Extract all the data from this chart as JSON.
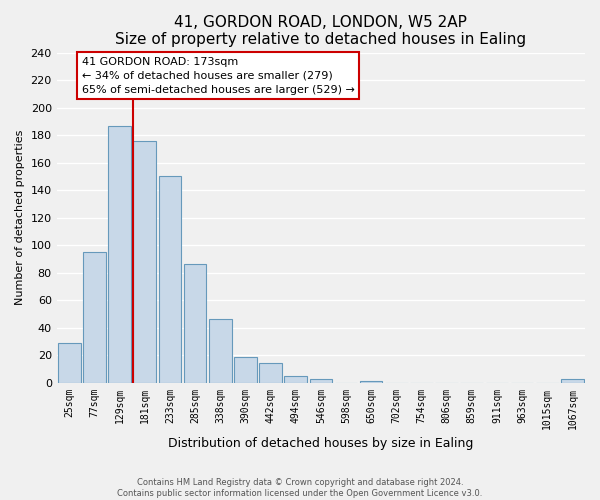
{
  "title": "41, GORDON ROAD, LONDON, W5 2AP",
  "subtitle": "Size of property relative to detached houses in Ealing",
  "xlabel": "Distribution of detached houses by size in Ealing",
  "ylabel": "Number of detached properties",
  "bar_color": "#c8d8e8",
  "bar_edge_color": "#6699bb",
  "bin_labels": [
    "25sqm",
    "77sqm",
    "129sqm",
    "181sqm",
    "233sqm",
    "285sqm",
    "338sqm",
    "390sqm",
    "442sqm",
    "494sqm",
    "546sqm",
    "598sqm",
    "650sqm",
    "702sqm",
    "754sqm",
    "806sqm",
    "859sqm",
    "911sqm",
    "963sqm",
    "1015sqm",
    "1067sqm"
  ],
  "bar_heights": [
    29,
    95,
    187,
    176,
    150,
    86,
    46,
    19,
    14,
    5,
    3,
    0,
    1,
    0,
    0,
    0,
    0,
    0,
    0,
    0,
    3
  ],
  "vline_x_idx": 3,
  "vline_color": "#cc0000",
  "ylim": [
    0,
    240
  ],
  "yticks": [
    0,
    20,
    40,
    60,
    80,
    100,
    120,
    140,
    160,
    180,
    200,
    220,
    240
  ],
  "annotation_title": "41 GORDON ROAD: 173sqm",
  "annotation_line1": "← 34% of detached houses are smaller (279)",
  "annotation_line2": "65% of semi-detached houses are larger (529) →",
  "footer1": "Contains HM Land Registry data © Crown copyright and database right 2024.",
  "footer2": "Contains public sector information licensed under the Open Government Licence v3.0.",
  "background_color": "#f0f0f0",
  "plot_bg_color": "#f0f0f0",
  "grid_color": "#ffffff"
}
